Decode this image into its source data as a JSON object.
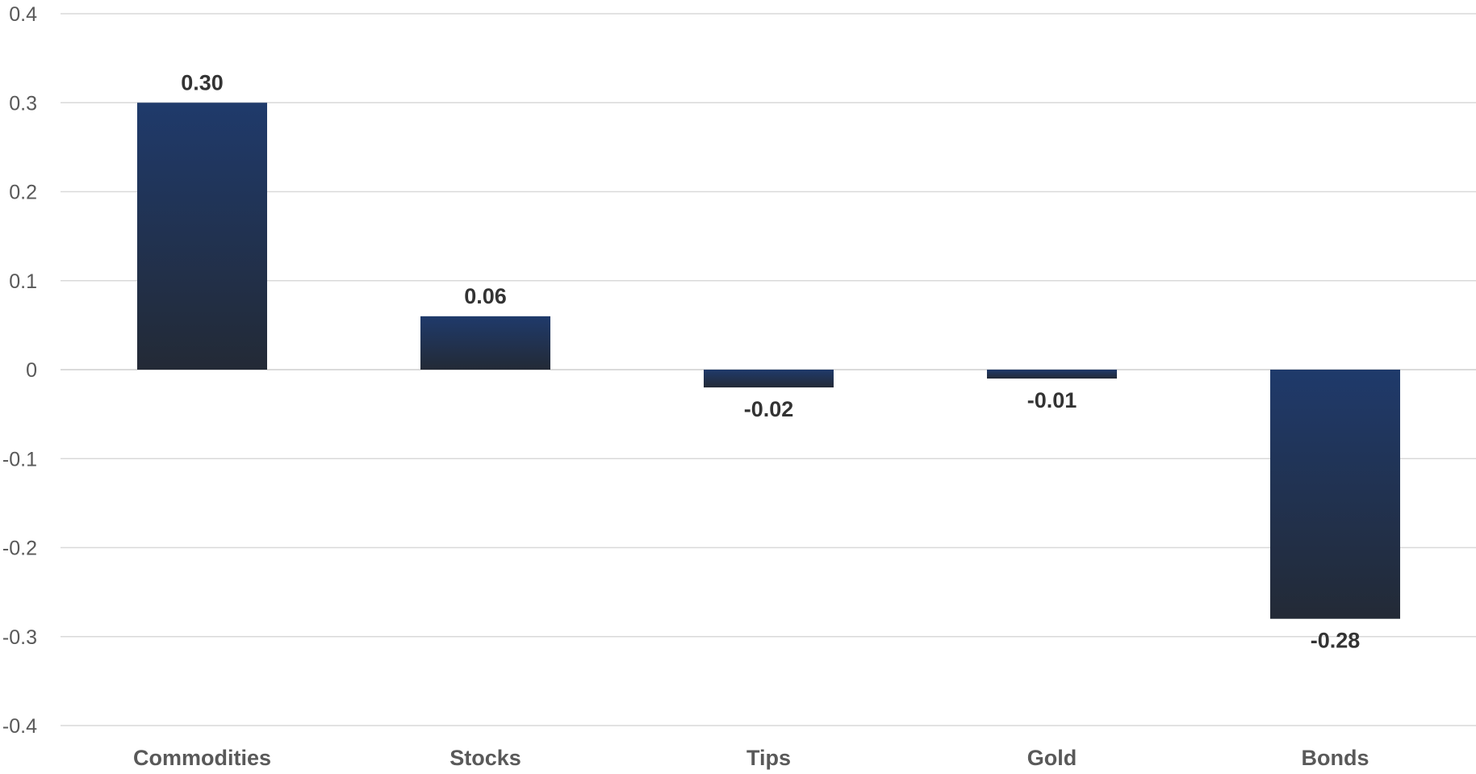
{
  "chart_data": {
    "type": "bar",
    "categories": [
      "Commodities",
      "Stocks",
      "Tips",
      "Gold",
      "Bonds"
    ],
    "values": [
      0.3,
      0.06,
      -0.02,
      -0.01,
      -0.28
    ],
    "value_labels": [
      "0.30",
      "0.06",
      "-0.02",
      "-0.01",
      "-0.28"
    ],
    "y_ticks": [
      0.4,
      0.3,
      0.2,
      0.1,
      0,
      -0.1,
      -0.2,
      -0.3,
      -0.4
    ],
    "y_tick_labels": [
      "0.4",
      "0.3",
      "0.2",
      "0.1",
      "0",
      "-0.1",
      "-0.2",
      "-0.3",
      "-0.4"
    ],
    "ylim": [
      -0.4,
      0.4
    ],
    "title": "",
    "xlabel": "",
    "ylabel": "",
    "grid": true,
    "legend": "none",
    "colors": {
      "bar_top": "#1f3a6b",
      "bar_bottom": "#232a36",
      "grid": "#d9d9d9",
      "tick_text": "#595959",
      "data_label_text": "#333333"
    }
  }
}
